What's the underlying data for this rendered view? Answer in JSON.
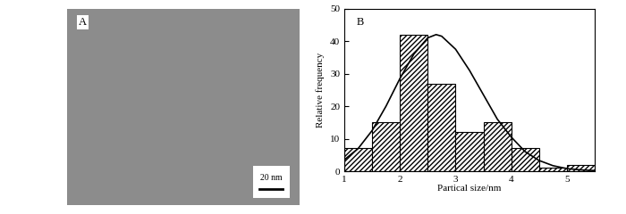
{
  "chart_data": [
    {
      "type": "image",
      "label": "A",
      "scale_bar": "20 nm",
      "color": "#8c8c8c"
    },
    {
      "type": "histogram",
      "label": "B",
      "bins": [
        1,
        1.5,
        2,
        2.5,
        3,
        3.5,
        4,
        4.5,
        5,
        5.5
      ],
      "counts": [
        7,
        15,
        42,
        27,
        12,
        15,
        7,
        1,
        2
      ],
      "color": "#ffffff",
      "series": [
        {
          "type": "line",
          "color": "#000000",
          "x": [
            1.0,
            1.25,
            1.5,
            1.75,
            2.0,
            2.25,
            2.5,
            2.65,
            2.75,
            3.0,
            3.25,
            3.5,
            3.75,
            4.0,
            4.25,
            4.5,
            4.75,
            5.0,
            5.25,
            5.5
          ],
          "values": [
            3.5,
            7,
            12.5,
            20,
            28.5,
            36,
            41,
            42,
            41.5,
            37.5,
            31,
            23.5,
            16,
            10.5,
            6,
            3.3,
            1.7,
            0.8,
            0.4,
            0.2
          ]
        }
      ],
      "xlabel": "Partical size/nm",
      "ylabel": "Relative frequency",
      "xlim": [
        1,
        5.5
      ],
      "xticks": [
        1,
        2,
        3,
        4,
        5
      ],
      "ylim": [
        0,
        50
      ],
      "yticks": [
        0,
        10,
        20,
        30,
        40,
        50
      ]
    }
  ]
}
